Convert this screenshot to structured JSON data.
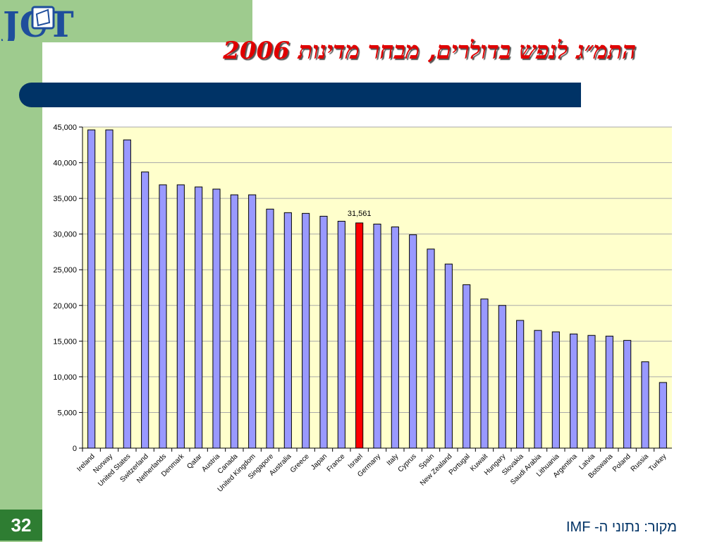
{
  "slide": {
    "title": "התמ״ג לנפש בדולרים, מבחר מדינות 2006",
    "page_number": "32",
    "source": "מקור: נתוני ה- IMF",
    "logo_text": "JCT"
  },
  "colors": {
    "bar": "#9999ff",
    "highlight": "#ff0000",
    "plot_bg": "#ffffcc",
    "sidebar": "#9ecb8e",
    "accent_bar": "#003366"
  },
  "chart_data": {
    "type": "bar",
    "categories": [
      "Ireland",
      "Norway",
      "United States",
      "Switzerland",
      "Netherlands",
      "Denmark",
      "Qatar",
      "Austria",
      "Canada",
      "United Kingdom",
      "Singapore",
      "Australia",
      "Greece",
      "Japan",
      "France",
      "Israel",
      "Germany",
      "Italy",
      "Cyprus",
      "Spain",
      "New Zealand",
      "Portugal",
      "Kuwait",
      "Hungary",
      "Slovakia",
      "Saudi Arabia",
      "Lithuania",
      "Argentina",
      "Latvia",
      "Botswana",
      "Poland",
      "Russia",
      "Turkey"
    ],
    "values": [
      44600,
      44600,
      43200,
      38700,
      36900,
      36900,
      36600,
      36300,
      35500,
      35500,
      33500,
      33000,
      32900,
      32500,
      31800,
      31561,
      31400,
      31000,
      29900,
      27900,
      25800,
      22900,
      20900,
      20000,
      17900,
      16500,
      16300,
      16000,
      15800,
      15700,
      15100,
      12100,
      9200
    ],
    "highlight_category": "Israel",
    "data_labels": [
      {
        "category": "Israel",
        "text": "31,561"
      }
    ],
    "ylim": [
      0,
      45000
    ],
    "yticks": [
      "0",
      "5,000",
      "10,000",
      "15,000",
      "20,000",
      "25,000",
      "30,000",
      "35,000",
      "40,000",
      "45,000"
    ],
    "ytick_values": [
      0,
      5000,
      10000,
      15000,
      20000,
      25000,
      30000,
      35000,
      40000,
      45000
    ],
    "grid": true,
    "legend": false,
    "title": "",
    "xlabel": "",
    "ylabel": ""
  }
}
